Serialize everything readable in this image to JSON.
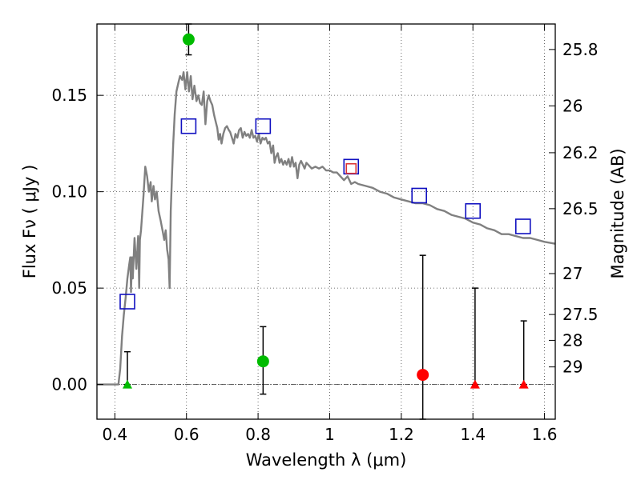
{
  "chart_data": {
    "type": "scatter",
    "title": "",
    "xlabel": "Wavelength  λ (μm)",
    "ylabel": "Flux  Fν  ( μJy )",
    "y2label": "Magnitude (AB)",
    "xlim": [
      0.35,
      1.63
    ],
    "ylim": [
      -0.018,
      0.187
    ],
    "grid": true,
    "xticks": [
      {
        "value": 0.4,
        "label": "0.4"
      },
      {
        "value": 0.6,
        "label": "0.6"
      },
      {
        "value": 0.8,
        "label": "0.8"
      },
      {
        "value": 1.0,
        "label": "1"
      },
      {
        "value": 1.2,
        "label": "1.2"
      },
      {
        "value": 1.4,
        "label": "1.4"
      },
      {
        "value": 1.6,
        "label": "1.6"
      }
    ],
    "yticks": [
      {
        "value": 0.0,
        "label": "0.00"
      },
      {
        "value": 0.05,
        "label": "0.05"
      },
      {
        "value": 0.1,
        "label": "0.10"
      },
      {
        "value": 0.15,
        "label": "0.15"
      }
    ],
    "y2ticks": [
      {
        "mag": 25.8,
        "label": "25.8"
      },
      {
        "mag": 26.0,
        "label": "26"
      },
      {
        "mag": 26.2,
        "label": "26.2"
      },
      {
        "mag": 26.5,
        "label": "26.5"
      },
      {
        "mag": 27.0,
        "label": "27"
      },
      {
        "mag": 27.5,
        "label": "27.5"
      },
      {
        "mag": 28.0,
        "label": "28"
      },
      {
        "mag": 29.0,
        "label": "29"
      }
    ],
    "model_sed": {
      "color": "#808080",
      "points": [
        [
          0.35,
          0.0
        ],
        [
          0.4,
          0.0
        ],
        [
          0.41,
          0.0
        ],
        [
          0.415,
          0.008
        ],
        [
          0.42,
          0.025
        ],
        [
          0.425,
          0.036
        ],
        [
          0.43,
          0.045
        ],
        [
          0.435,
          0.055
        ],
        [
          0.44,
          0.062
        ],
        [
          0.443,
          0.066
        ],
        [
          0.445,
          0.048
        ],
        [
          0.448,
          0.066
        ],
        [
          0.45,
          0.055
        ],
        [
          0.455,
          0.076
        ],
        [
          0.46,
          0.06
        ],
        [
          0.465,
          0.077
        ],
        [
          0.468,
          0.05
        ],
        [
          0.47,
          0.075
        ],
        [
          0.473,
          0.08
        ],
        [
          0.48,
          0.098
        ],
        [
          0.485,
          0.113
        ],
        [
          0.49,
          0.108
        ],
        [
          0.495,
          0.1
        ],
        [
          0.5,
          0.105
        ],
        [
          0.503,
          0.095
        ],
        [
          0.508,
          0.103
        ],
        [
          0.512,
          0.096
        ],
        [
          0.517,
          0.1
        ],
        [
          0.522,
          0.09
        ],
        [
          0.528,
          0.085
        ],
        [
          0.533,
          0.08
        ],
        [
          0.538,
          0.075
        ],
        [
          0.542,
          0.08
        ],
        [
          0.546,
          0.07
        ],
        [
          0.55,
          0.065
        ],
        [
          0.553,
          0.05
        ],
        [
          0.556,
          0.09
        ],
        [
          0.56,
          0.11
        ],
        [
          0.563,
          0.125
        ],
        [
          0.567,
          0.14
        ],
        [
          0.572,
          0.152
        ],
        [
          0.578,
          0.157
        ],
        [
          0.582,
          0.16
        ],
        [
          0.588,
          0.158
        ],
        [
          0.592,
          0.162
        ],
        [
          0.597,
          0.153
        ],
        [
          0.602,
          0.162
        ],
        [
          0.607,
          0.152
        ],
        [
          0.612,
          0.16
        ],
        [
          0.617,
          0.148
        ],
        [
          0.622,
          0.155
        ],
        [
          0.628,
          0.147
        ],
        [
          0.633,
          0.15
        ],
        [
          0.638,
          0.146
        ],
        [
          0.643,
          0.145
        ],
        [
          0.648,
          0.152
        ],
        [
          0.653,
          0.135
        ],
        [
          0.658,
          0.147
        ],
        [
          0.662,
          0.15
        ],
        [
          0.667,
          0.147
        ],
        [
          0.672,
          0.145
        ],
        [
          0.677,
          0.14
        ],
        [
          0.682,
          0.136
        ],
        [
          0.686,
          0.133
        ],
        [
          0.69,
          0.127
        ],
        [
          0.694,
          0.13
        ],
        [
          0.698,
          0.125
        ],
        [
          0.703,
          0.13
        ],
        [
          0.708,
          0.133
        ],
        [
          0.713,
          0.134
        ],
        [
          0.718,
          0.132
        ],
        [
          0.722,
          0.131
        ],
        [
          0.727,
          0.128
        ],
        [
          0.732,
          0.125
        ],
        [
          0.737,
          0.13
        ],
        [
          0.742,
          0.128
        ],
        [
          0.747,
          0.132
        ],
        [
          0.752,
          0.133
        ],
        [
          0.757,
          0.128
        ],
        [
          0.762,
          0.131
        ],
        [
          0.767,
          0.129
        ],
        [
          0.772,
          0.13
        ],
        [
          0.777,
          0.128
        ],
        [
          0.782,
          0.132
        ],
        [
          0.787,
          0.128
        ],
        [
          0.792,
          0.129
        ],
        [
          0.797,
          0.126
        ],
        [
          0.802,
          0.13
        ],
        [
          0.807,
          0.125
        ],
        [
          0.812,
          0.128
        ],
        [
          0.817,
          0.127
        ],
        [
          0.822,
          0.128
        ],
        [
          0.827,
          0.125
        ],
        [
          0.832,
          0.126
        ],
        [
          0.837,
          0.12
        ],
        [
          0.842,
          0.124
        ],
        [
          0.846,
          0.115
        ],
        [
          0.85,
          0.118
        ],
        [
          0.855,
          0.12
        ],
        [
          0.86,
          0.115
        ],
        [
          0.865,
          0.117
        ],
        [
          0.87,
          0.114
        ],
        [
          0.875,
          0.116
        ],
        [
          0.88,
          0.114
        ],
        [
          0.885,
          0.117
        ],
        [
          0.89,
          0.113
        ],
        [
          0.895,
          0.118
        ],
        [
          0.9,
          0.113
        ],
        [
          0.905,
          0.115
        ],
        [
          0.91,
          0.107
        ],
        [
          0.915,
          0.114
        ],
        [
          0.92,
          0.116
        ],
        [
          0.925,
          0.114
        ],
        [
          0.93,
          0.112
        ],
        [
          0.935,
          0.115
        ],
        [
          0.94,
          0.114
        ],
        [
          0.95,
          0.112
        ],
        [
          0.96,
          0.113
        ],
        [
          0.97,
          0.112
        ],
        [
          0.98,
          0.113
        ],
        [
          0.99,
          0.111
        ],
        [
          1.0,
          0.111
        ],
        [
          1.01,
          0.11
        ],
        [
          1.02,
          0.11
        ],
        [
          1.03,
          0.108
        ],
        [
          1.04,
          0.106
        ],
        [
          1.05,
          0.108
        ],
        [
          1.06,
          0.104
        ],
        [
          1.07,
          0.105
        ],
        [
          1.08,
          0.104
        ],
        [
          1.1,
          0.103
        ],
        [
          1.12,
          0.102
        ],
        [
          1.14,
          0.1
        ],
        [
          1.16,
          0.099
        ],
        [
          1.18,
          0.097
        ],
        [
          1.2,
          0.096
        ],
        [
          1.22,
          0.095
        ],
        [
          1.24,
          0.094
        ],
        [
          1.26,
          0.094
        ],
        [
          1.28,
          0.093
        ],
        [
          1.3,
          0.091
        ],
        [
          1.32,
          0.09
        ],
        [
          1.34,
          0.088
        ],
        [
          1.36,
          0.087
        ],
        [
          1.38,
          0.086
        ],
        [
          1.4,
          0.084
        ],
        [
          1.42,
          0.083
        ],
        [
          1.44,
          0.081
        ],
        [
          1.46,
          0.08
        ],
        [
          1.48,
          0.078
        ],
        [
          1.5,
          0.078
        ],
        [
          1.52,
          0.077
        ],
        [
          1.54,
          0.076
        ],
        [
          1.56,
          0.076
        ],
        [
          1.58,
          0.075
        ],
        [
          1.6,
          0.074
        ],
        [
          1.63,
          0.073
        ]
      ]
    },
    "model_photometry": [
      {
        "x": 0.435,
        "y": 0.043,
        "color": "#1010c0"
      },
      {
        "x": 0.606,
        "y": 0.134,
        "color": "#1010c0"
      },
      {
        "x": 0.814,
        "y": 0.134,
        "color": "#1010c0"
      },
      {
        "x": 1.06,
        "y": 0.113,
        "color": "#1010c0"
      },
      {
        "x": 1.06,
        "y": 0.112,
        "color": "#dd3333",
        "small": true
      },
      {
        "x": 1.25,
        "y": 0.098,
        "color": "#1010c0"
      },
      {
        "x": 1.4,
        "y": 0.09,
        "color": "#1010c0"
      },
      {
        "x": 1.54,
        "y": 0.082,
        "color": "#1010c0"
      }
    ],
    "detections": [
      {
        "x": 0.606,
        "y": 0.179,
        "err_low": 0.171,
        "err_high": 0.187,
        "color": "#00bb00"
      },
      {
        "x": 0.814,
        "y": 0.012,
        "err_low": -0.005,
        "err_high": 0.03,
        "color": "#00bb00"
      },
      {
        "x": 1.26,
        "y": 0.005,
        "err_low": -0.018,
        "err_high": 0.067,
        "color": "#ff0000"
      }
    ],
    "upper_limits": [
      {
        "x": 0.435,
        "y": 0.0,
        "err_high": 0.017,
        "color": "#00bb00"
      },
      {
        "x": 1.406,
        "y": 0.0,
        "err_high": 0.05,
        "color": "#ff0000"
      },
      {
        "x": 1.542,
        "y": 0.0,
        "err_high": 0.033,
        "color": "#ff0000"
      }
    ]
  }
}
